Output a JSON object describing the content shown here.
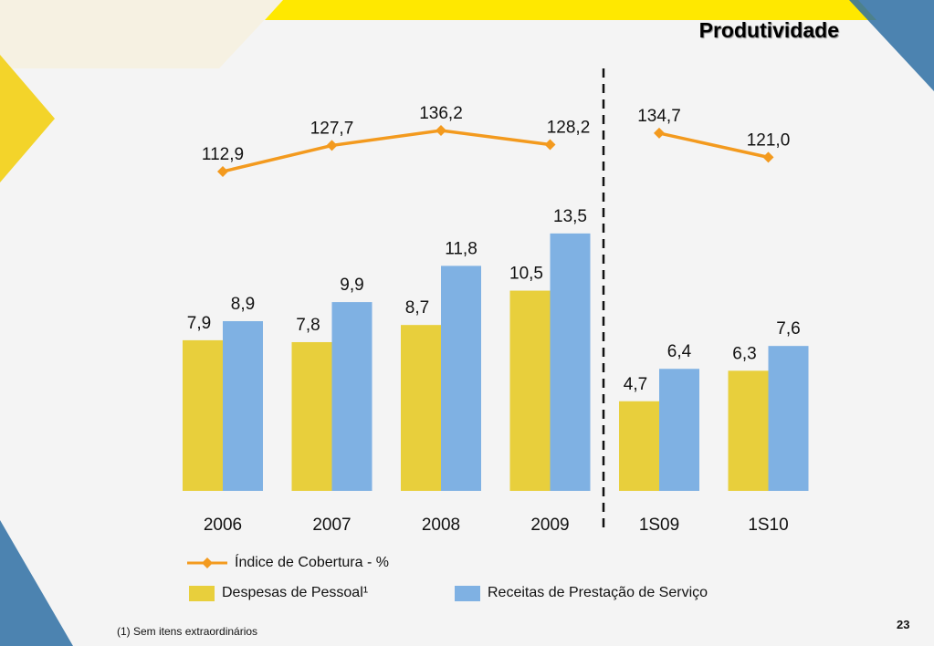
{
  "slide": {
    "title": "Produtividade",
    "page_number": "23",
    "footnote": "(1) Sem itens extraordinários"
  },
  "colors": {
    "despesas": "#e8cf3c",
    "receitas": "#7fb1e3",
    "indice": "#f39a1e",
    "yellow_band": "#ffe800",
    "blue_decor": "#2e6ea3"
  },
  "chart_data": {
    "type": "bar+line",
    "categories": [
      "2006",
      "2007",
      "2008",
      "2009",
      "1S09",
      "1S10"
    ],
    "series": [
      {
        "name": "Despesas de Pessoal¹",
        "type": "bar",
        "values": [
          7.9,
          7.8,
          8.7,
          10.5,
          4.7,
          6.3
        ],
        "labels": [
          "7,9",
          "7,8",
          "8,7",
          "10,5",
          "4,7",
          "6,3"
        ]
      },
      {
        "name": "Receitas de Prestação de Serviço",
        "type": "bar",
        "values": [
          8.9,
          9.9,
          11.8,
          13.5,
          6.4,
          7.6
        ],
        "labels": [
          "8,9",
          "9,9",
          "11,8",
          "13,5",
          "6,4",
          "7,6"
        ]
      },
      {
        "name": "Índice de Cobertura - %",
        "type": "line",
        "values": [
          112.9,
          127.7,
          136.2,
          128.2,
          134.7,
          121.0
        ],
        "labels": [
          "112,9",
          "127,7",
          "136,2",
          "128,2",
          "134,7",
          "121,0"
        ],
        "breaks_after": "2009"
      }
    ],
    "separator_after": "2009",
    "legend_position": "bottom",
    "grid": false
  }
}
